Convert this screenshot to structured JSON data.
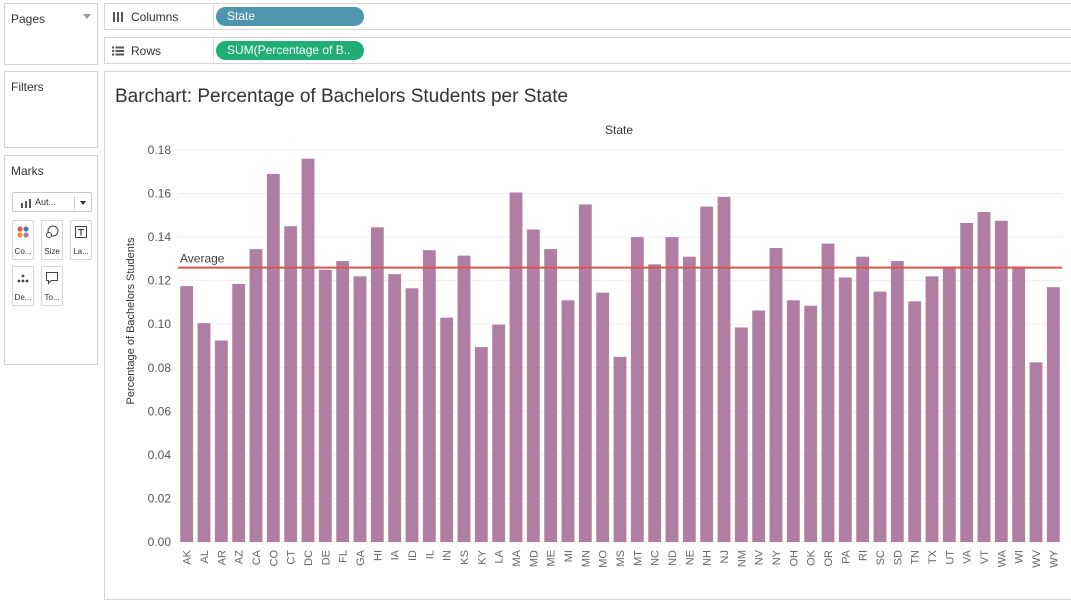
{
  "sidebar": {
    "pages_label": "Pages",
    "filters_label": "Filters",
    "marks": {
      "label": "Marks",
      "mark_type": "Aut...",
      "buttons": [
        {
          "label": "Co...",
          "icon": "color-icon"
        },
        {
          "label": "Size",
          "icon": "size-icon"
        },
        {
          "label": "La...",
          "icon": "label-icon"
        },
        {
          "label": "De...",
          "icon": "detail-icon"
        },
        {
          "label": "To...",
          "icon": "tooltip-icon"
        }
      ]
    }
  },
  "shelves": {
    "columns": {
      "label": "Columns",
      "pill": "State",
      "pill_color": "#4d96ad"
    },
    "rows": {
      "label": "Rows",
      "pill": "SUM(Percentage of B..",
      "pill_color": "#1fae77"
    }
  },
  "chart_data": {
    "type": "bar",
    "title": "Barchart: Percentage of Bachelors Students per State",
    "xlabel": "State",
    "ylabel": "Percentage of Bachelors Students",
    "ylim": [
      0,
      0.18
    ],
    "yticks": [
      "0.00",
      "0.02",
      "0.04",
      "0.06",
      "0.08",
      "0.10",
      "0.12",
      "0.14",
      "0.16",
      "0.18"
    ],
    "bar_color": "#b07ea3",
    "reference_line": {
      "label": "Average",
      "value": 0.126,
      "color": "#d9534f"
    },
    "grid": true,
    "categories": [
      "AK",
      "AL",
      "AR",
      "AZ",
      "CA",
      "CO",
      "CT",
      "DC",
      "DE",
      "FL",
      "GA",
      "HI",
      "IA",
      "ID",
      "IL",
      "IN",
      "KS",
      "KY",
      "LA",
      "MA",
      "MD",
      "ME",
      "MI",
      "MN",
      "MO",
      "MS",
      "MT",
      "NC",
      "ND",
      "NE",
      "NH",
      "NJ",
      "NM",
      "NV",
      "NY",
      "OH",
      "OK",
      "OR",
      "PA",
      "RI",
      "SC",
      "SD",
      "TN",
      "TX",
      "UT",
      "VA",
      "VT",
      "WA",
      "WI",
      "WV",
      "WY"
    ],
    "values": [
      0.1175,
      0.1005,
      0.0925,
      0.1185,
      0.1345,
      0.169,
      0.145,
      0.176,
      0.125,
      0.129,
      0.122,
      0.1445,
      0.123,
      0.1165,
      0.134,
      0.103,
      0.1315,
      0.0895,
      0.0998,
      0.1605,
      0.1435,
      0.1345,
      0.111,
      0.155,
      0.1145,
      0.085,
      0.14,
      0.1275,
      0.14,
      0.131,
      0.154,
      0.1585,
      0.0985,
      0.1063,
      0.135,
      0.111,
      0.1085,
      0.137,
      0.1215,
      0.131,
      0.115,
      0.129,
      0.1105,
      0.122,
      0.1265,
      0.1465,
      0.1515,
      0.1475,
      0.1265,
      0.0825,
      0.117
    ]
  }
}
